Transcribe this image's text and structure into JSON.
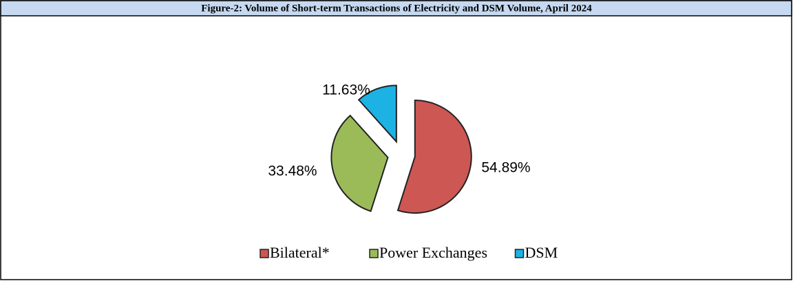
{
  "chart_data": {
    "type": "pie",
    "title": "Figure-2: Volume of Short-term Transactions of Electricity and DSM Volume, April 2024",
    "categories": [
      "Bilateral*",
      "Power Exchanges",
      "DSM"
    ],
    "values": [
      54.89,
      33.48,
      11.63
    ],
    "value_labels": [
      "54.89%",
      "33.48%",
      "11.63%"
    ],
    "colors": [
      "#cd5753",
      "#9bbb59",
      "#1cb2e4"
    ],
    "legend": "bottom"
  }
}
